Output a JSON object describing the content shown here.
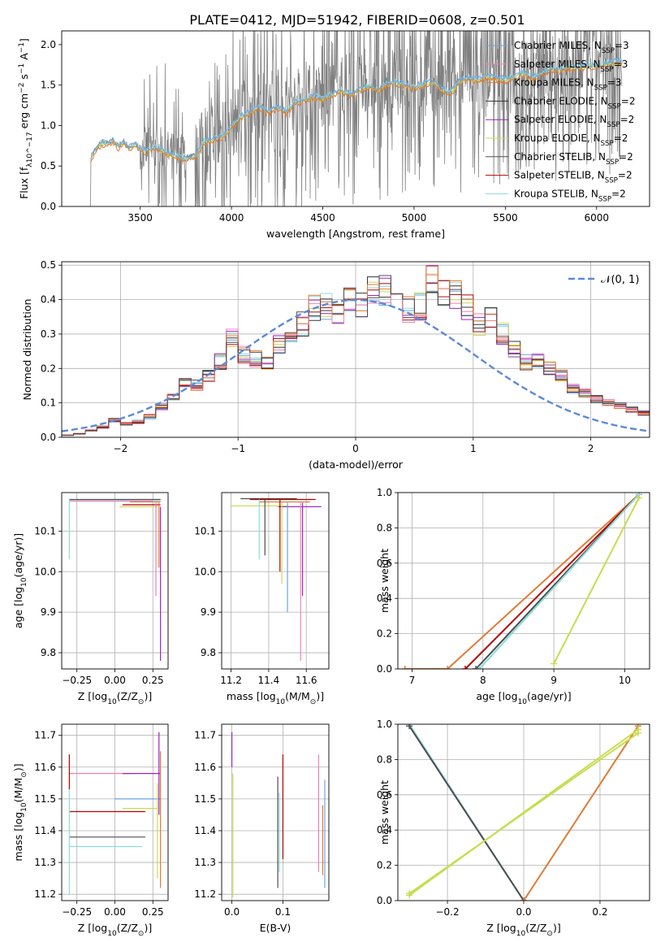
{
  "figure_title": "PLATE=0412, MJD=51942, FIBERID=0608, z=0.501",
  "series_colors": {
    "Chabrier MILES": "#6aa4e6",
    "Salpeter MILES": "#f080b4",
    "Kroupa MILES": "#e07b35",
    "Chabrier ELODIE": "#333333",
    "Salpeter ELODIE": "#a020c0",
    "Kroupa ELODIE": "#c8dc50",
    "Chabrier STELIB": "#4d4d4d",
    "Salpeter STELIB": "#b40000",
    "Kroupa STELIB": "#8cdcdc",
    "data": "#808080",
    "normal_curve": "#5b8ad8"
  },
  "chart_data": [
    {
      "id": "spectrum",
      "type": "line",
      "xlabel": "wavelength [Angstrom, rest frame]",
      "ylabel": "Flux [f_λ 10^-17 erg cm^-2 s^-1 A^-1]",
      "xlim": [
        3070,
        6290
      ],
      "ylim": [
        0,
        2.17
      ],
      "xticks": [
        3500,
        4000,
        4500,
        5000,
        5500,
        6000
      ],
      "yticks": [
        0.0,
        0.5,
        1.0,
        1.5,
        2.0
      ],
      "legend_position": "top-right",
      "legend": [
        "Chabrier MILES, N_SSP=3",
        "Salpeter MILES, N_SSP=3",
        "Kroupa MILES, N_SSP=3",
        "Chabrier ELODIE, N_SSP=2",
        "Salpeter ELODIE, N_SSP=2",
        "Kroupa ELODIE, N_SSP=2",
        "Chabrier STELIB, N_SSP=2",
        "Salpeter STELIB, N_SSP=2",
        "Kroupa STELIB, N_SSP=2"
      ],
      "model_continuum": {
        "x": [
          3230,
          3260,
          3290,
          3320,
          3350,
          3380,
          3410,
          3440,
          3470,
          3500,
          3540,
          3580,
          3620,
          3660,
          3700,
          3750,
          3800,
          3850,
          3900,
          3950,
          4000,
          4050,
          4100,
          4150,
          4200,
          4250,
          4300,
          4350,
          4400,
          4450,
          4500,
          4550,
          4600,
          4650,
          4700,
          4750,
          4800,
          4850,
          4900,
          4950,
          5000,
          5050,
          5100,
          5150,
          5200,
          5250,
          5300,
          5350,
          5400,
          5450,
          5500,
          5550,
          5600,
          5650,
          5700,
          5750,
          5800,
          5850,
          5900,
          5950,
          6000,
          6050,
          6100,
          6140
        ],
        "y": [
          0.62,
          0.72,
          0.8,
          0.78,
          0.82,
          0.75,
          0.8,
          0.73,
          0.78,
          0.72,
          0.7,
          0.74,
          0.7,
          0.66,
          0.63,
          0.6,
          0.62,
          0.82,
          0.85,
          0.88,
          1.0,
          1.12,
          1.18,
          1.25,
          1.18,
          1.24,
          1.18,
          1.3,
          1.33,
          1.37,
          1.34,
          1.4,
          1.45,
          1.4,
          1.45,
          1.5,
          1.46,
          1.52,
          1.55,
          1.52,
          1.48,
          1.52,
          1.56,
          1.46,
          1.42,
          1.56,
          1.6,
          1.58,
          1.62,
          1.6,
          1.58,
          1.62,
          1.66,
          1.6,
          1.66,
          1.72,
          1.7,
          1.74,
          1.72,
          1.76,
          1.74,
          1.78,
          1.8,
          1.8
        ]
      }
    },
    {
      "id": "residuals",
      "type": "histogram",
      "xlabel": "(data-model)/error",
      "ylabel": "Normed distribution",
      "xlim": [
        -2.5,
        2.5
      ],
      "ylim": [
        0,
        0.51
      ],
      "xticks": [
        -2,
        -1,
        0,
        1,
        2
      ],
      "yticks": [
        0.0,
        0.1,
        0.2,
        0.3,
        0.4,
        0.5
      ],
      "legend_position": "top-right",
      "legend": [
        "𝒩(0, 1)"
      ],
      "bin_width": 0.1,
      "bins_start": -2.6,
      "heights": [
        0.005,
        0.006,
        0.01,
        0.02,
        0.03,
        0.05,
        0.04,
        0.045,
        0.06,
        0.09,
        0.12,
        0.16,
        0.15,
        0.18,
        0.22,
        0.29,
        0.24,
        0.23,
        0.22,
        0.27,
        0.31,
        0.33,
        0.38,
        0.38,
        0.37,
        0.4,
        0.39,
        0.42,
        0.43,
        0.4,
        0.37,
        0.38,
        0.46,
        0.43,
        0.41,
        0.38,
        0.33,
        0.34,
        0.3,
        0.26,
        0.22,
        0.23,
        0.2,
        0.18,
        0.14,
        0.13,
        0.11,
        0.1,
        0.09,
        0.08,
        0.07,
        0.06,
        0.05,
        0.045,
        0.04,
        0.04
      ]
    },
    {
      "id": "age_vs_Z",
      "type": "scatter",
      "xlabel": "Z [log10(Z/Z⊙)]",
      "ylabel": "age  [log10(age/yr)]",
      "xlim": [
        -0.35,
        0.35
      ],
      "ylim": [
        9.76,
        10.195
      ],
      "xticks": [
        -0.25,
        0.0,
        0.25
      ],
      "yticks": [
        9.8,
        9.9,
        10.0,
        10.1
      ],
      "segments": [
        {
          "series": "Kroupa STELIB",
          "x": [
            -0.3,
            0.3
          ],
          "y": [
            10.175,
            10.175
          ]
        },
        {
          "series": "Chabrier STELIB",
          "x": [
            -0.3,
            0.3
          ],
          "y": [
            10.178,
            10.178
          ]
        },
        {
          "series": "Salpeter STELIB",
          "x": [
            0.05,
            0.3
          ],
          "y": [
            10.165,
            10.165
          ]
        },
        {
          "series": "Kroupa ELODIE",
          "x": [
            0.03,
            0.28
          ],
          "y": [
            10.16,
            10.16
          ]
        },
        {
          "series": "Kroupa MILES",
          "x": [
            0.1,
            0.3
          ],
          "y": [
            10.172,
            10.172
          ]
        },
        {
          "series": "Salpeter MILES",
          "x": [
            -0.3,
            0.25
          ],
          "y": [
            10.174,
            10.174
          ]
        }
      ],
      "errorbars": [
        {
          "series": "Kroupa STELIB",
          "x": -0.3,
          "y0": 10.03,
          "y1": 10.175
        },
        {
          "series": "Salpeter ELODIE",
          "x": 0.3,
          "y0": 9.78,
          "y1": 10.16
        },
        {
          "series": "Salpeter MILES",
          "x": 0.27,
          "y0": 9.94,
          "y1": 10.17
        },
        {
          "series": "Kroupa MILES",
          "x": 0.29,
          "y0": 10.01,
          "y1": 10.17
        }
      ]
    },
    {
      "id": "age_vs_mass",
      "type": "scatter",
      "xlabel": "mass [log10(M/M⊙)]",
      "ylabel": "",
      "xlim": [
        11.15,
        11.72
      ],
      "ylim": [
        9.76,
        10.195
      ],
      "xticks": [
        11.2,
        11.4,
        11.6
      ],
      "yticks": [
        9.8,
        9.9,
        10.0,
        10.1
      ],
      "segments": [
        {
          "series": "Chabrier STELIB",
          "x": [
            11.25,
            11.55
          ],
          "y": [
            10.18,
            10.18
          ]
        },
        {
          "series": "Salpeter STELIB",
          "x": [
            11.3,
            11.65
          ],
          "y": [
            10.178,
            10.178
          ]
        },
        {
          "series": "Kroupa MILES",
          "x": [
            11.35,
            11.62
          ],
          "y": [
            10.172,
            10.172
          ]
        },
        {
          "series": "Salpeter ELODIE",
          "x": [
            11.45,
            11.68
          ],
          "y": [
            10.16,
            10.16
          ]
        },
        {
          "series": "Kroupa ELODIE",
          "x": [
            11.2,
            11.5
          ],
          "y": [
            10.162,
            10.162
          ]
        }
      ],
      "errorbars": [
        {
          "series": "Kroupa STELIB",
          "x": 11.35,
          "y0": 10.03,
          "y1": 10.178
        },
        {
          "series": "Chabrier STELIB",
          "x": 11.38,
          "y0": 10.04,
          "y1": 10.178
        },
        {
          "series": "Salpeter STELIB",
          "x": 11.46,
          "y0": 10.0,
          "y1": 10.178
        },
        {
          "series": "Kroupa ELODIE",
          "x": 11.47,
          "y0": 9.97,
          "y1": 10.17
        },
        {
          "series": "Chabrier MILES",
          "x": 11.5,
          "y0": 9.9,
          "y1": 10.17
        },
        {
          "series": "Salpeter ELODIE",
          "x": 11.58,
          "y0": 9.94,
          "y1": 10.17
        },
        {
          "series": "Salpeter MILES",
          "x": 11.57,
          "y0": 9.78,
          "y1": 10.17
        }
      ]
    },
    {
      "id": "mass_weight_vs_age",
      "type": "line",
      "xlabel": "age  [log10(age/yr)]",
      "ylabel": "mass weight",
      "xlim": [
        6.8,
        10.35
      ],
      "ylim": [
        0,
        1.0
      ],
      "xticks": [
        7,
        8,
        9,
        10
      ],
      "yticks": [
        0.0,
        0.2,
        0.4,
        0.6,
        0.8,
        1.0
      ],
      "series": [
        {
          "series": "Kroupa MILES",
          "x": [
            6.9,
            7.5,
            10.2
          ],
          "y": [
            0.0,
            0.0,
            0.99
          ]
        },
        {
          "series": "Salpeter STELIB",
          "x": [
            7.75,
            10.2
          ],
          "y": [
            0.0,
            0.99
          ]
        },
        {
          "series": "Chabrier STELIB",
          "x": [
            7.9,
            10.2
          ],
          "y": [
            0.0,
            0.99
          ]
        },
        {
          "series": "Kroupa STELIB",
          "x": [
            7.95,
            10.2
          ],
          "y": [
            0.0,
            0.99
          ]
        },
        {
          "series": "Kroupa ELODIE",
          "x": [
            9.0,
            10.2
          ],
          "y": [
            0.03,
            0.97
          ]
        }
      ]
    },
    {
      "id": "mass_vs_Z",
      "type": "scatter",
      "xlabel": "Z [log10(Z/Z⊙)]",
      "ylabel": "mass [log10(M/M⊙)]",
      "xlim": [
        -0.35,
        0.35
      ],
      "ylim": [
        11.18,
        11.735
      ],
      "xticks": [
        -0.25,
        0.0,
        0.25
      ],
      "yticks": [
        11.2,
        11.3,
        11.4,
        11.5,
        11.6,
        11.7
      ],
      "segments": [
        {
          "series": "Salpeter MILES",
          "x": [
            -0.3,
            0.1
          ],
          "y": [
            11.58,
            11.58
          ]
        },
        {
          "series": "Salpeter ELODIE",
          "x": [
            0.05,
            0.3
          ],
          "y": [
            11.58,
            11.58
          ]
        },
        {
          "series": "Chabrier MILES",
          "x": [
            0.0,
            0.3
          ],
          "y": [
            11.5,
            11.5
          ]
        },
        {
          "series": "Kroupa ELODIE",
          "x": [
            0.05,
            0.28
          ],
          "y": [
            11.47,
            11.47
          ]
        },
        {
          "series": "Salpeter STELIB",
          "x": [
            -0.3,
            0.2
          ],
          "y": [
            11.46,
            11.46
          ]
        },
        {
          "series": "Chabrier STELIB",
          "x": [
            -0.3,
            0.2
          ],
          "y": [
            11.38,
            11.38
          ]
        },
        {
          "series": "Kroupa STELIB",
          "x": [
            -0.3,
            0.18
          ],
          "y": [
            11.35,
            11.35
          ]
        }
      ],
      "errorbars": [
        {
          "series": "Salpeter STELIB",
          "x": -0.3,
          "y0": 11.53,
          "y1": 11.64
        },
        {
          "series": "Kroupa STELIB",
          "x": -0.3,
          "y0": 11.2,
          "y1": 11.53
        },
        {
          "series": "Salpeter ELODIE",
          "x": 0.29,
          "y0": 11.45,
          "y1": 11.71
        },
        {
          "series": "Kroupa MILES",
          "x": 0.3,
          "y0": 11.22,
          "y1": 11.65
        },
        {
          "series": "Kroupa ELODIE",
          "x": 0.28,
          "y0": 11.25,
          "y1": 11.55
        }
      ]
    },
    {
      "id": "mass_vs_ebv",
      "type": "scatter",
      "xlabel": "E(B-V)",
      "ylabel": "",
      "xlim": [
        -0.02,
        0.19
      ],
      "ylim": [
        11.18,
        11.735
      ],
      "xticks": [
        0.0,
        0.1
      ],
      "yticks": [
        11.2,
        11.3,
        11.4,
        11.5,
        11.6,
        11.7
      ],
      "errorbars": [
        {
          "series": "Salpeter ELODIE",
          "x": 0.0,
          "y0": 11.6,
          "y1": 11.71
        },
        {
          "series": "Kroupa ELODIE",
          "x": 0.002,
          "y0": 11.19,
          "y1": 11.58
        },
        {
          "series": "Chabrier STELIB",
          "x": 0.09,
          "y0": 11.22,
          "y1": 11.57
        },
        {
          "series": "Kroupa STELIB",
          "x": 0.093,
          "y0": 11.27,
          "y1": 11.52
        },
        {
          "series": "Salpeter STELIB",
          "x": 0.1,
          "y0": 11.31,
          "y1": 11.64
        },
        {
          "series": "Salpeter MILES",
          "x": 0.17,
          "y0": 11.27,
          "y1": 11.64
        },
        {
          "series": "Kroupa MILES",
          "x": 0.178,
          "y0": 11.26,
          "y1": 11.48
        },
        {
          "series": "Chabrier MILES",
          "x": 0.182,
          "y0": 11.22,
          "y1": 11.56
        }
      ]
    },
    {
      "id": "mass_weight_vs_Z",
      "type": "line",
      "xlabel": "Z [log10(Z/Z⊙)]",
      "ylabel": "mass weight",
      "xlim": [
        -0.33,
        0.33
      ],
      "ylim": [
        0,
        1.0
      ],
      "xticks": [
        -0.2,
        0.0,
        0.2
      ],
      "yticks": [
        0.0,
        0.2,
        0.4,
        0.6,
        0.8,
        1.0
      ],
      "series": [
        {
          "series": "Kroupa STELIB",
          "x": [
            -0.3,
            0.0
          ],
          "y": [
            1.0,
            0.0
          ]
        },
        {
          "series": "Chabrier STELIB",
          "x": [
            -0.3,
            0.0
          ],
          "y": [
            0.99,
            0.0
          ]
        },
        {
          "series": "Kroupa MILES",
          "x": [
            0.0,
            0.3
          ],
          "y": [
            0.0,
            0.99
          ]
        },
        {
          "series": "Kroupa ELODIE",
          "x": [
            -0.3,
            0.3
          ],
          "y": [
            0.03,
            0.97
          ]
        },
        {
          "series": "Kroupa ELODIE",
          "x": [
            -0.3,
            0.3
          ],
          "y": [
            0.04,
            0.95
          ]
        }
      ]
    }
  ]
}
